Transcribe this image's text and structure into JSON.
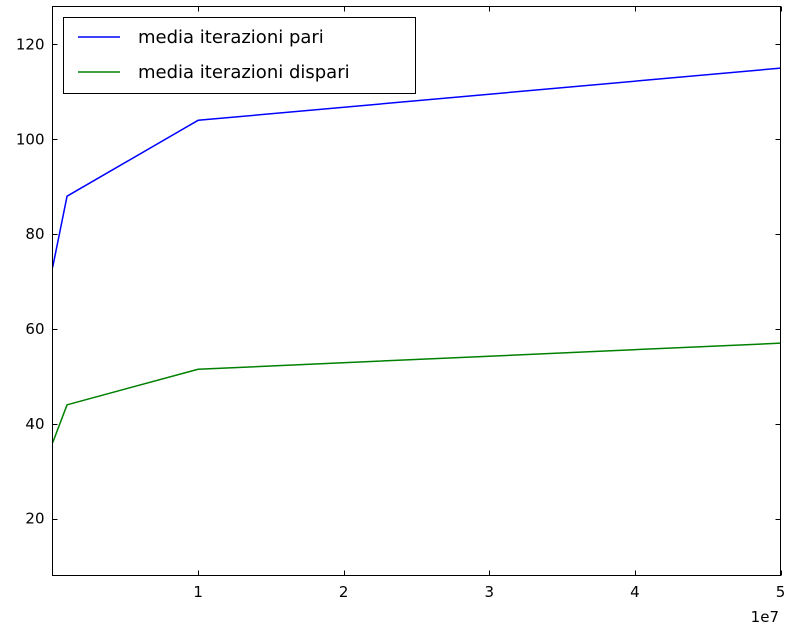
{
  "chart_data": {
    "type": "line",
    "title": "",
    "xlabel": "",
    "ylabel": "",
    "x_offset_label": "1e7",
    "x": [
      10000,
      1000000,
      10000000,
      50000000
    ],
    "xlim": [
      0,
      50000000
    ],
    "ylim": [
      8,
      128
    ],
    "x_ticks": [
      10000000,
      20000000,
      30000000,
      40000000,
      50000000
    ],
    "x_tick_labels": [
      "1",
      "2",
      "3",
      "4",
      "5"
    ],
    "y_ticks": [
      20,
      40,
      60,
      80,
      100,
      120
    ],
    "y_tick_labels": [
      "20",
      "40",
      "60",
      "80",
      "100",
      "120"
    ],
    "grid": false,
    "legend_position": "top-left",
    "series": [
      {
        "name": "media iterazioni pari",
        "color": "#0000ff",
        "x": [
          10000,
          1000000,
          10000000,
          50000000
        ],
        "values": [
          73,
          88,
          104,
          115
        ]
      },
      {
        "name": "media iterazioni dispari",
        "color": "#008000",
        "x": [
          10000,
          1000000,
          10000000,
          50000000
        ],
        "values": [
          36,
          44,
          51.5,
          57
        ]
      }
    ]
  }
}
